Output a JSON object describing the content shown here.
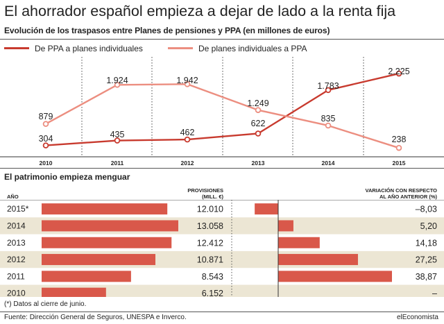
{
  "title": "El ahorrador español empieza a dejar de lado a la renta fija",
  "subtitle": "Evolución de los traspasos entre Planes de pensiones y PPA (en millones de euros)",
  "colors": {
    "dark_red": "#c83a2e",
    "light_red": "#ec8e80",
    "bar_red": "#d9584a",
    "band": "#ece6d4",
    "grid": "#555555"
  },
  "chart_data": [
    {
      "type": "line",
      "x": [
        "2010",
        "2011",
        "2012",
        "2013",
        "2014",
        "2015"
      ],
      "series": [
        {
          "name": "De PPA a planes individuales",
          "values": [
            304,
            435,
            462,
            622,
            1783,
            2225
          ],
          "labels": [
            "304",
            "435",
            "462",
            "622",
            "1.783",
            "2.225"
          ]
        },
        {
          "name": "De planes individuales a PPA",
          "values": [
            879,
            1924,
            1942,
            1249,
            835,
            238
          ],
          "labels": [
            "879",
            "1.924",
            "1.942",
            "1.249",
            "835",
            "238"
          ]
        }
      ],
      "ylim": [
        0,
        2300
      ],
      "legend": "top"
    },
    {
      "type": "bar",
      "title": "El patrimonio empieza  menguar",
      "col_year": "AÑO",
      "col_prov": "PROVISIONES (MILL. €)",
      "col_var": "VARIACIÓN CON RESPECTO AL AÑO ANTERIOR (%)",
      "rows": [
        {
          "year": "2015*",
          "provisiones": 12010,
          "prov_label": "12.010",
          "variacion": -8.03,
          "var_label": "–8,03"
        },
        {
          "year": "2014",
          "provisiones": 13058,
          "prov_label": "13.058",
          "variacion": 5.2,
          "var_label": "5,20"
        },
        {
          "year": "2013",
          "provisiones": 12412,
          "prov_label": "12.412",
          "variacion": 14.18,
          "var_label": "14,18"
        },
        {
          "year": "2012",
          "provisiones": 10871,
          "prov_label": "10.871",
          "variacion": 27.25,
          "var_label": "27,25"
        },
        {
          "year": "2011",
          "provisiones": 8543,
          "prov_label": "8.543",
          "variacion": 38.87,
          "var_label": "38,87"
        },
        {
          "year": "2010",
          "provisiones": 6152,
          "prov_label": "6.152",
          "variacion": null,
          "var_label": "–"
        }
      ]
    }
  ],
  "hdr": {
    "year": "AÑO",
    "prov_1": "PROVISIONES",
    "prov_2": "(MILL. €)",
    "var_1": "VARIACIÓN CON RESPECTO",
    "var_2": "AL AÑO ANTERIOR (%)"
  },
  "footnote": "(*) Datos al cierre de junio.",
  "source": "Fuente: Dirección General de Seguros, UNESPA e Inverco.",
  "brand": "elEconomista"
}
